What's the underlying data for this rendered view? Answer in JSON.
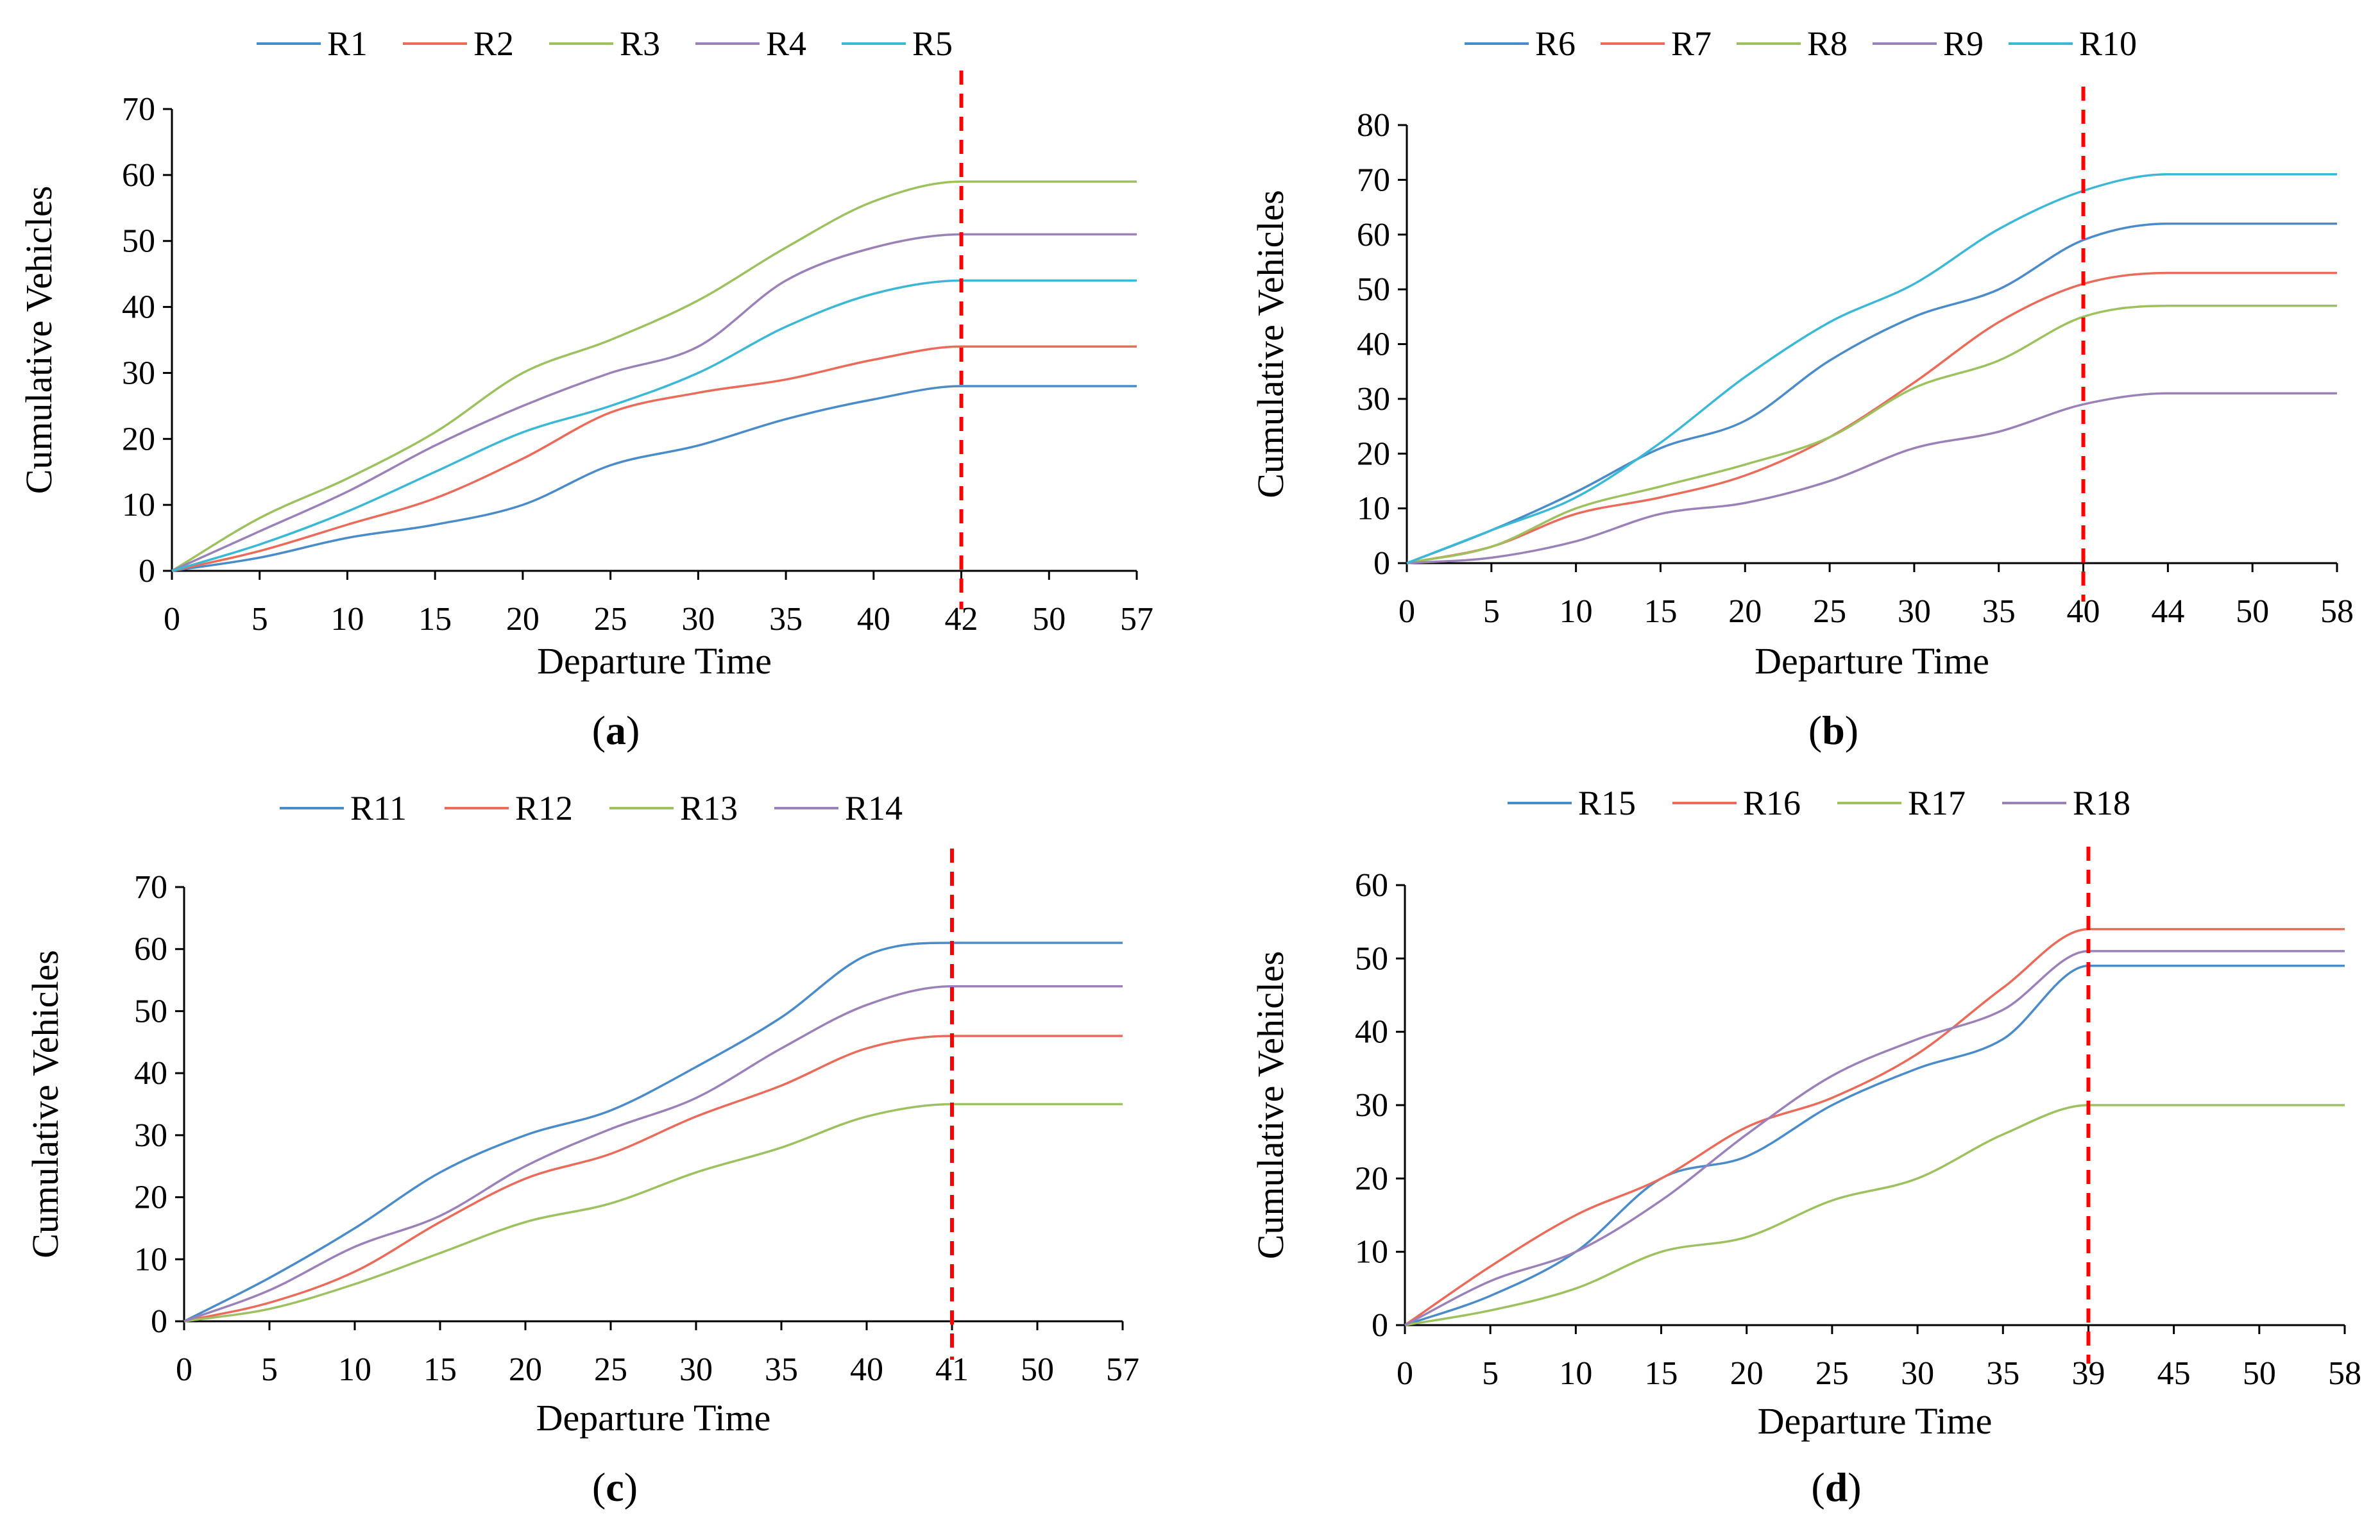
{
  "chart_data": [
    {
      "panel_label": "a",
      "type": "line",
      "xlabel": "Departure Time",
      "ylabel": "Cumulative  Vehicles",
      "ylim": [
        0,
        70
      ],
      "yticks": [
        0,
        10,
        20,
        30,
        40,
        50,
        60,
        70
      ],
      "categories": [
        "0",
        "5",
        "10",
        "15",
        "20",
        "25",
        "30",
        "35",
        "40",
        "42",
        "50",
        "57"
      ],
      "x": [
        0,
        5,
        10,
        15,
        20,
        25,
        30,
        35,
        40,
        42,
        50,
        57
      ],
      "cutoff_category": "42",
      "legend": "top",
      "series": [
        {
          "name": "R1",
          "color": "#4a8bc9",
          "values": [
            0,
            2,
            5,
            7,
            10,
            16,
            19,
            23,
            26,
            28,
            28,
            28
          ]
        },
        {
          "name": "R2",
          "color": "#ea6b5a",
          "values": [
            0,
            3,
            7,
            11,
            17,
            24,
            27,
            29,
            32,
            34,
            34,
            34
          ]
        },
        {
          "name": "R3",
          "color": "#9dc15f",
          "values": [
            0,
            8,
            14,
            21,
            30,
            35,
            41,
            49,
            56,
            59,
            59,
            59
          ]
        },
        {
          "name": "R4",
          "color": "#9a82b8",
          "values": [
            0,
            6,
            12,
            19,
            25,
            30,
            34,
            44,
            49,
            51,
            51,
            51
          ]
        },
        {
          "name": "R5",
          "color": "#3ab8d6",
          "values": [
            0,
            4,
            9,
            15,
            21,
            25,
            30,
            37,
            42,
            44,
            44,
            44
          ]
        }
      ]
    },
    {
      "panel_label": "b",
      "type": "line",
      "xlabel": "Departure Time",
      "ylabel": "Cumulative  Vehicles",
      "ylim": [
        0,
        80
      ],
      "yticks": [
        0,
        10,
        20,
        30,
        40,
        50,
        60,
        70,
        80
      ],
      "categories": [
        "0",
        "5",
        "10",
        "15",
        "20",
        "25",
        "30",
        "35",
        "40",
        "44",
        "50",
        "58"
      ],
      "x": [
        0,
        5,
        10,
        15,
        20,
        25,
        30,
        35,
        40,
        44,
        50,
        58
      ],
      "cutoff_category": "40",
      "legend": "top",
      "series": [
        {
          "name": "R6",
          "color": "#4a8bc9",
          "values": [
            0,
            6,
            13,
            21,
            26,
            37,
            45,
            50,
            59,
            62,
            62,
            62
          ]
        },
        {
          "name": "R7",
          "color": "#ea6b5a",
          "values": [
            0,
            3,
            9,
            12,
            16,
            23,
            33,
            44,
            51,
            53,
            53,
            53
          ]
        },
        {
          "name": "R8",
          "color": "#9dc15f",
          "values": [
            0,
            3,
            10,
            14,
            18,
            23,
            32,
            37,
            45,
            47,
            47,
            47
          ]
        },
        {
          "name": "R9",
          "color": "#9a82b8",
          "values": [
            0,
            1,
            4,
            9,
            11,
            15,
            21,
            24,
            29,
            31,
            31,
            31
          ]
        },
        {
          "name": "R10",
          "color": "#3ab8d6",
          "values": [
            0,
            6,
            12,
            22,
            34,
            44,
            51,
            61,
            68,
            71,
            71,
            71
          ]
        }
      ]
    },
    {
      "panel_label": "c",
      "type": "line",
      "xlabel": "Departure Time",
      "ylabel": "Cumulative  Vehicles",
      "ylim": [
        0,
        70
      ],
      "yticks": [
        0,
        10,
        20,
        30,
        40,
        50,
        60,
        70
      ],
      "categories": [
        "0",
        "5",
        "10",
        "15",
        "20",
        "25",
        "30",
        "35",
        "40",
        "41",
        "50",
        "57"
      ],
      "x": [
        0,
        5,
        10,
        15,
        20,
        25,
        30,
        35,
        40,
        41,
        50,
        57
      ],
      "cutoff_category": "41",
      "legend": "top",
      "series": [
        {
          "name": "R11",
          "color": "#4a8bc9",
          "values": [
            0,
            7,
            15,
            24,
            30,
            34,
            41,
            49,
            59,
            61,
            61,
            61
          ]
        },
        {
          "name": "R12",
          "color": "#ea6b5a",
          "values": [
            0,
            3,
            8,
            16,
            23,
            27,
            33,
            38,
            44,
            46,
            46,
            46
          ]
        },
        {
          "name": "R13",
          "color": "#9dc15f",
          "values": [
            0,
            2,
            6,
            11,
            16,
            19,
            24,
            28,
            33,
            35,
            35,
            35
          ]
        },
        {
          "name": "R14",
          "color": "#9a82b8",
          "values": [
            0,
            5,
            12,
            17,
            25,
            31,
            36,
            44,
            51,
            54,
            54,
            54
          ]
        }
      ]
    },
    {
      "panel_label": "d",
      "type": "line",
      "xlabel": "Departure Time",
      "ylabel": "Cumulative  Vehicles",
      "ylim": [
        0,
        60
      ],
      "yticks": [
        0,
        10,
        20,
        30,
        40,
        50,
        60
      ],
      "categories": [
        "0",
        "5",
        "10",
        "15",
        "20",
        "25",
        "30",
        "35",
        "39",
        "45",
        "50",
        "58"
      ],
      "x": [
        0,
        5,
        10,
        15,
        20,
        25,
        30,
        35,
        39,
        45,
        50,
        58
      ],
      "cutoff_category": "39",
      "legend": "top",
      "series": [
        {
          "name": "R15",
          "color": "#4a8bc9",
          "values": [
            0,
            4,
            10,
            20,
            23,
            30,
            35,
            39,
            49,
            49,
            49,
            49
          ]
        },
        {
          "name": "R16",
          "color": "#ea6b5a",
          "values": [
            0,
            8,
            15,
            20,
            27,
            31,
            37,
            46,
            54,
            54,
            54,
            54
          ]
        },
        {
          "name": "R17",
          "color": "#9dc15f",
          "values": [
            0,
            2,
            5,
            10,
            12,
            17,
            20,
            26,
            30,
            30,
            30,
            30
          ]
        },
        {
          "name": "R18",
          "color": "#9a82b8",
          "values": [
            0,
            6,
            10,
            17,
            26,
            34,
            39,
            43,
            51,
            51,
            51,
            51
          ]
        }
      ]
    }
  ]
}
